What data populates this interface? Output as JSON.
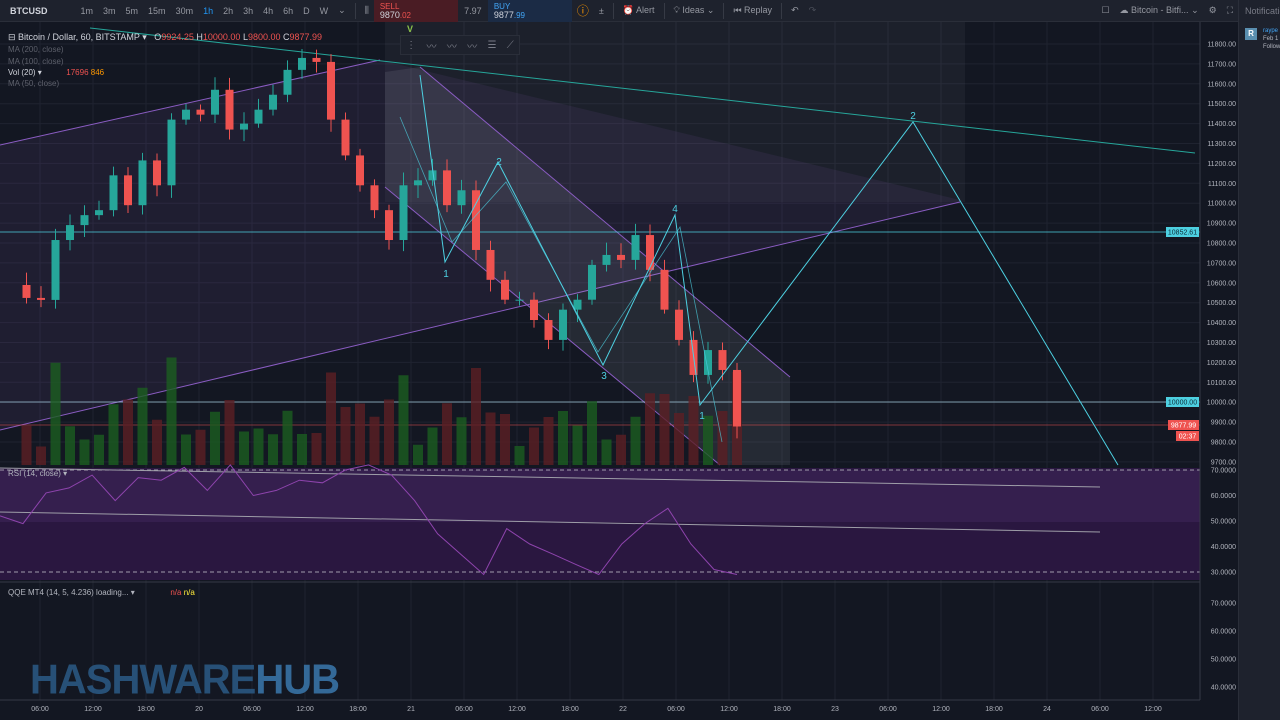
{
  "toolbar": {
    "symbol": "BTCUSD",
    "intervals": [
      "1m",
      "3m",
      "5m",
      "15m",
      "30m",
      "1h",
      "2h",
      "3h",
      "4h",
      "6h",
      "D",
      "W"
    ],
    "active_interval": "1h",
    "sell": {
      "label": "SELL",
      "price_main": "9870",
      "price_tail": ".02"
    },
    "spread": "7.97",
    "buy": {
      "label": "BUY",
      "price_main": "9877",
      "price_tail": ".99"
    },
    "alert": "Alert",
    "ideas": "Ideas",
    "replay": "Replay",
    "watchlist": "Bitcoin - Bitfi..."
  },
  "notifications": {
    "title": "Notifications",
    "avatar": "R",
    "user": "raype",
    "date": "Feb 1",
    "action": "Follow"
  },
  "legend": {
    "title": "Bitcoin / Dollar, 60, BITSTAMP",
    "o": "O",
    "o_val": "9924.25",
    "h": "H",
    "h_val": "10000.00",
    "l": "L",
    "l_val": "9800.00",
    "c": "C",
    "c_val": "9877.99",
    "indicators": [
      "MA (200, close)",
      "MA (100, close)",
      "Vol (20)",
      "MA (50, close)"
    ],
    "vol_values": [
      "17696",
      "846"
    ],
    "rsi": "RSI (14, close)",
    "qqe": "QQE MT4 (14, 5, 4.236) loading...",
    "qqe_vals": [
      "n/a",
      "n/a"
    ]
  },
  "annotations": {
    "v_marker": "V",
    "waves": [
      "1",
      "2",
      "3",
      "4",
      "1",
      "2"
    ]
  },
  "price_axis": {
    "ticks": [
      "11800.00",
      "11700.00",
      "11600.00",
      "11500.00",
      "11400.00",
      "11300.00",
      "11200.00",
      "11100.00",
      "11000.00",
      "10900.00",
      "10800.00",
      "10700.00",
      "10600.00",
      "10500.00",
      "10400.00",
      "10300.00",
      "10200.00",
      "10100.00",
      "10000.00",
      "9900.00",
      "9800.00",
      "9700.00"
    ],
    "level_line": "10852.61",
    "round_line": "10000.00",
    "last_price": "9877.99",
    "countdown": "02:37"
  },
  "rsi_axis": [
    "70.0000",
    "60.0000",
    "50.0000",
    "40.0000",
    "30.0000"
  ],
  "qqe_axis": [
    "70.0000",
    "60.0000",
    "50.0000",
    "40.0000"
  ],
  "time_axis": [
    "06:00",
    "12:00",
    "18:00",
    "20",
    "06:00",
    "12:00",
    "18:00",
    "21",
    "06:00",
    "12:00",
    "18:00",
    "22",
    "06:00",
    "12:00",
    "18:00",
    "23",
    "06:00",
    "12:00",
    "18:00",
    "24",
    "06:00",
    "12:00"
  ],
  "colors": {
    "up": "#26a69a",
    "down": "#ef5350",
    "bg": "#131722",
    "wave": "#4dd0e1",
    "channel": "#9c6ade",
    "rsi": "#7e3f9e"
  },
  "chart_data": {
    "type": "candlestick",
    "price_range": [
      9700,
      11800
    ],
    "closes": [
      10589,
      10524,
      10514,
      10815,
      10890,
      10940,
      10965,
      11140,
      10990,
      11215,
      11090,
      11420,
      11470,
      11445,
      11570,
      11370,
      11400,
      11470,
      11545,
      11670,
      11730,
      11710,
      11420,
      11240,
      11090,
      10965,
      10815,
      11090,
      11115,
      11165,
      10990,
      11065,
      10765,
      10615,
      10515,
      10515,
      10413,
      10313,
      10465,
      10515,
      10690,
      10740,
      10715,
      10840,
      10665,
      10465,
      10313,
      10137,
      10262,
      10162,
      9877.99
    ],
    "rsi": [
      52,
      49,
      61,
      63,
      68,
      58,
      67,
      66,
      71,
      62,
      72,
      60,
      62,
      66,
      65,
      70,
      72,
      68,
      58,
      45,
      37,
      29,
      47,
      41,
      37,
      33,
      29,
      41,
      49,
      55,
      41,
      31,
      29
    ]
  },
  "logo": {
    "part1": "HASHWARE",
    "part2": "HUB"
  }
}
